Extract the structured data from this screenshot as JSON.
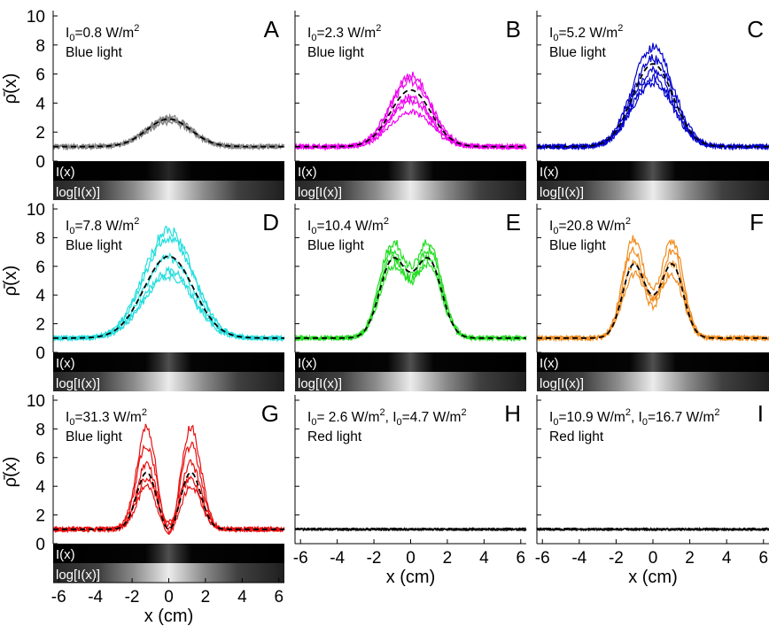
{
  "chart_data": {
    "type": "line",
    "ylabel": "ρ̄(x)",
    "xlabel": "x (cm)",
    "xlim": [
      -6.3,
      6.3
    ],
    "ylim": [
      0,
      10
    ],
    "x_ticks": [
      "-6",
      "-4",
      "-2",
      "0",
      "2",
      "4",
      "6"
    ],
    "y_ticks": [
      "0",
      "2",
      "4",
      "6",
      "8",
      "10"
    ],
    "strip_labels": [
      "I(x)",
      "log[I(x)]"
    ],
    "panels": [
      {
        "letter": "A",
        "line1_parts": [
          "I",
          "0",
          "=0.8 W/m",
          "2"
        ],
        "line2": "Blue light",
        "color": "#808080",
        "profile": {
          "kind": "single",
          "peak": 2.9,
          "width": 1.2
        },
        "traces": [
          {
            "peak": 3.0
          },
          {
            "peak": 2.8
          },
          {
            "peak": 2.9
          },
          {
            "peak": 2.7
          }
        ]
      },
      {
        "letter": "B",
        "line1_parts": [
          "I",
          "0",
          "=2.3 W/m",
          "2"
        ],
        "line2": "Blue light",
        "color": "#ee00ee",
        "profile": {
          "kind": "single",
          "peak": 4.9,
          "width": 1.1
        },
        "traces": [
          {
            "peak": 5.9
          },
          {
            "peak": 5.5
          },
          {
            "peak": 4.4
          },
          {
            "peak": 4.1
          },
          {
            "peak": 3.4
          }
        ]
      },
      {
        "letter": "C",
        "line1_parts": [
          "I",
          "0",
          "=5.2 W/m",
          "2"
        ],
        "line2": "Blue light",
        "color": "#0000cc",
        "profile": {
          "kind": "single",
          "peak": 6.7,
          "width": 1.1
        },
        "traces": [
          {
            "peak": 7.9
          },
          {
            "peak": 7.1
          },
          {
            "peak": 6.3
          },
          {
            "peak": 5.7
          },
          {
            "peak": 5.4
          }
        ]
      },
      {
        "letter": "D",
        "line1_parts": [
          "I",
          "0",
          "=7.8 W/m",
          "2"
        ],
        "line2": "Blue light",
        "color": "#22dddd",
        "profile": {
          "kind": "single",
          "peak": 6.7,
          "width": 1.35
        },
        "traces": [
          {
            "peak": 8.5
          },
          {
            "peak": 8.0
          },
          {
            "peak": 6.6
          },
          {
            "peak": 5.7
          },
          {
            "peak": 5.3
          }
        ]
      },
      {
        "letter": "E",
        "line1_parts": [
          "I",
          "0",
          "=10.4  W/m",
          "2"
        ],
        "line2": "Blue light",
        "color": "#22dd22",
        "profile": {
          "kind": "plateau",
          "peak": 6.4,
          "dip": 5.6,
          "center": 1.0,
          "width": 0.7
        },
        "traces": [
          {
            "peak": 7.6,
            "dip": 6.0
          },
          {
            "peak": 7.1,
            "dip": 5.4
          },
          {
            "peak": 6.6,
            "dip": 4.9
          },
          {
            "peak": 5.9,
            "dip": 5.2
          }
        ]
      },
      {
        "letter": "F",
        "line1_parts": [
          "I",
          "0",
          "=20.8 W/m",
          "2"
        ],
        "line2": "Blue light",
        "color": "#f08c1e",
        "profile": {
          "kind": "double",
          "peak": 6.1,
          "dip": 4.0,
          "center": 1.05,
          "width": 0.6
        },
        "traces": [
          {
            "peak": 7.8,
            "dip": 4.4
          },
          {
            "peak": 7.1,
            "dip": 3.6
          },
          {
            "peak": 6.2,
            "dip": 3.2
          },
          {
            "peak": 5.4,
            "dip": 3.9
          }
        ]
      },
      {
        "letter": "G",
        "line1_parts": [
          "I",
          "0",
          "=31.3 W/m",
          "2"
        ],
        "line2": "Blue light",
        "color": "#e81010",
        "profile": {
          "kind": "double",
          "peak": 5.0,
          "dip": 1.0,
          "center": 1.2,
          "width": 0.55
        },
        "traces": [
          {
            "peak": 8.1,
            "dip": 0.9
          },
          {
            "peak": 6.9,
            "dip": 1.3
          },
          {
            "peak": 5.6,
            "dip": 1.0
          },
          {
            "peak": 4.6,
            "dip": 1.5
          },
          {
            "peak": 4.0,
            "dip": 0.8
          }
        ]
      },
      {
        "letter": "H",
        "line1_parts": [
          "I",
          "0",
          "= 2.6 W/m",
          "2",
          ", I",
          "0",
          "=4.7 W/m",
          "2"
        ],
        "line2": "Red light",
        "color": "#111111",
        "profile": {
          "kind": "flat",
          "peak": 1.0
        },
        "traces": [
          {
            "peak": 1.0
          },
          {
            "peak": 1.0
          },
          {
            "peak": 1.0
          },
          {
            "peak": 1.0
          }
        ]
      },
      {
        "letter": "I",
        "line1_parts": [
          "I",
          "0",
          "=10.9 W/m",
          "2",
          ", I",
          "0",
          "=16.7 W/m",
          "2"
        ],
        "line2": "Red light",
        "color": "#111111",
        "profile": {
          "kind": "flat",
          "peak": 1.0
        },
        "traces": [
          {
            "peak": 1.0
          },
          {
            "peak": 1.0
          },
          {
            "peak": 1.0
          },
          {
            "peak": 1.0
          }
        ]
      }
    ]
  }
}
